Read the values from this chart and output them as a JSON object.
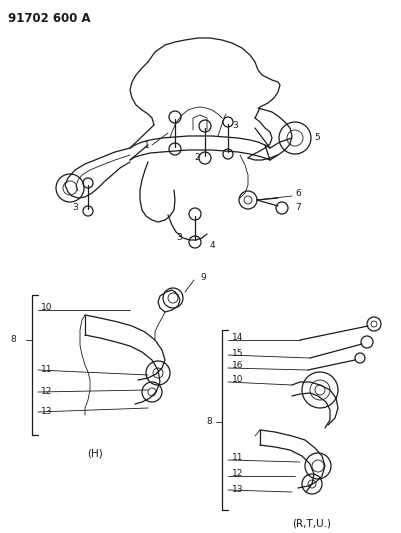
{
  "title": "91702 600 A",
  "bg_color": "#ffffff",
  "line_color": "#1a1a1a",
  "text_color": "#1a1a1a",
  "title_fontsize": 8.5,
  "label_fontsize": 6.5,
  "fig_width": 4.02,
  "fig_height": 5.33,
  "dpi": 100
}
